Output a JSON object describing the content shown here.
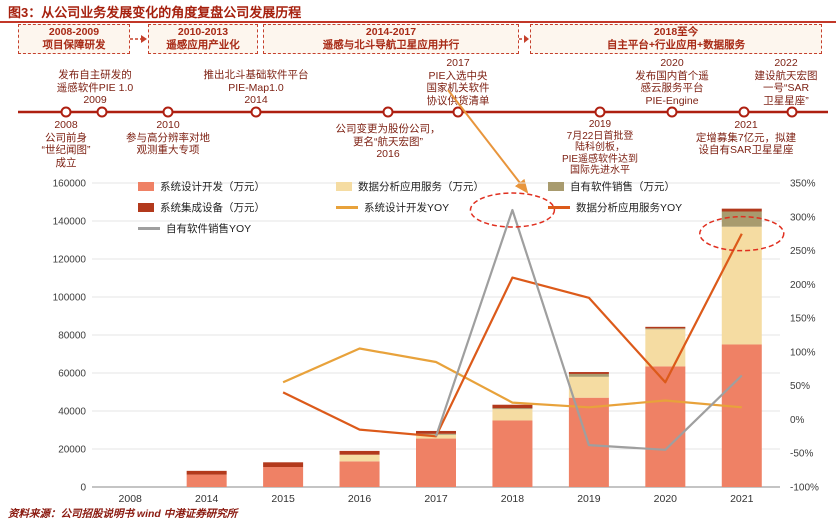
{
  "page": {
    "title": "图3：从公司业务发展变化的角度复盘公司发展历程",
    "source": "资料来源：公司招股说明书 wind 中港证券研究所"
  },
  "timeline": {
    "phases": [
      {
        "years": "2008-2009",
        "label": "项目保障研发"
      },
      {
        "years": "2010-2013",
        "label": "遥感应用产业化"
      },
      {
        "years": "2014-2017",
        "label": "遥感与北斗导航卫星应用并行"
      },
      {
        "years": "2018至今",
        "label": "自主平台+行业应用+数据服务"
      }
    ],
    "milestones_above": [
      {
        "text": "发布自主研发的\n遥感软件PIE 1.0\n2009"
      },
      {
        "text": "推出北斗基础软件平台\nPIE-Map1.0\n2014"
      },
      {
        "text": "2017\nPIE入选中央\n国家机关软件\n协议供货清单"
      },
      {
        "text": "2020\n发布国内首个遥\n感云服务平台\nPIE-Engine"
      },
      {
        "text": "2022\n建设航天宏图\n一号“SAR\n卫星星座”"
      }
    ],
    "milestones_below": [
      {
        "text": "2008\n公司前身\n“世纪闻图”\n成立"
      },
      {
        "text": "2010\n参与高分辨率对地\n观测重大专项"
      },
      {
        "text": "公司变更为股份公司，\n更名“航天宏图”\n2016"
      },
      {
        "text": "2019\n7月22日首批登\n陆科创板，\nPIE遥感软件达到\n国际先进水平"
      },
      {
        "text": "2021\n定增募集7亿元，拟建\n设自有SAR卫星星座"
      }
    ]
  },
  "chart_data": {
    "type": "bar",
    "subtype": "stacked bars (left axis, 万元) + YOY lines (right axis, %)",
    "categories": [
      "2008",
      "2014",
      "2015",
      "2016",
      "2017",
      "2018",
      "2019",
      "2020",
      "2021"
    ],
    "bar_series": [
      {
        "name": "系统设计开发（万元）",
        "color": "#EF8165",
        "values": [
          0,
          6500,
          10500,
          13500,
          25500,
          35000,
          47000,
          63500,
          75000
        ]
      },
      {
        "name": "数据分析应用服务（万元）",
        "color": "#F5DCA2",
        "values": [
          0,
          0,
          0,
          3500,
          2000,
          6000,
          11000,
          19500,
          62000
        ]
      },
      {
        "name": "自有软件销售（万元）",
        "color": "#A89B6E",
        "values": [
          0,
          0,
          0,
          0,
          500,
          500,
          1500,
          500,
          8000
        ]
      },
      {
        "name": "系统集成设备（万元）",
        "color": "#B2391C",
        "values": [
          0,
          2000,
          2500,
          2000,
          1500,
          1800,
          1000,
          800,
          1500
        ]
      }
    ],
    "line_series": [
      {
        "name": "系统设计开发YOY",
        "color": "#E8A23B",
        "values": [
          null,
          null,
          55,
          105,
          85,
          25,
          18,
          28,
          18
        ]
      },
      {
        "name": "数据分析应用服务YOY",
        "color": "#DC5A1A",
        "values": [
          null,
          null,
          40,
          -15,
          -25,
          210,
          180,
          55,
          275
        ]
      },
      {
        "name": "自有软件销售YOY",
        "color": "#9F9F9F",
        "values": [
          null,
          null,
          null,
          null,
          -25,
          310,
          -38,
          -45,
          65
        ]
      }
    ],
    "left_axis": {
      "min": 0,
      "max": 160000,
      "step": 20000
    },
    "right_axis": {
      "min": -100,
      "max": 350,
      "step": 50,
      "unit": "%"
    },
    "annotations": [
      {
        "type": "dashed-ellipse",
        "category": "2018",
        "percent": 310
      },
      {
        "type": "dashed-ellipse",
        "category": "2021",
        "percent": 275
      }
    ],
    "legend_position": "top-inside, 3 columns",
    "grid": "horizontal gridlines at left-axis steps"
  }
}
